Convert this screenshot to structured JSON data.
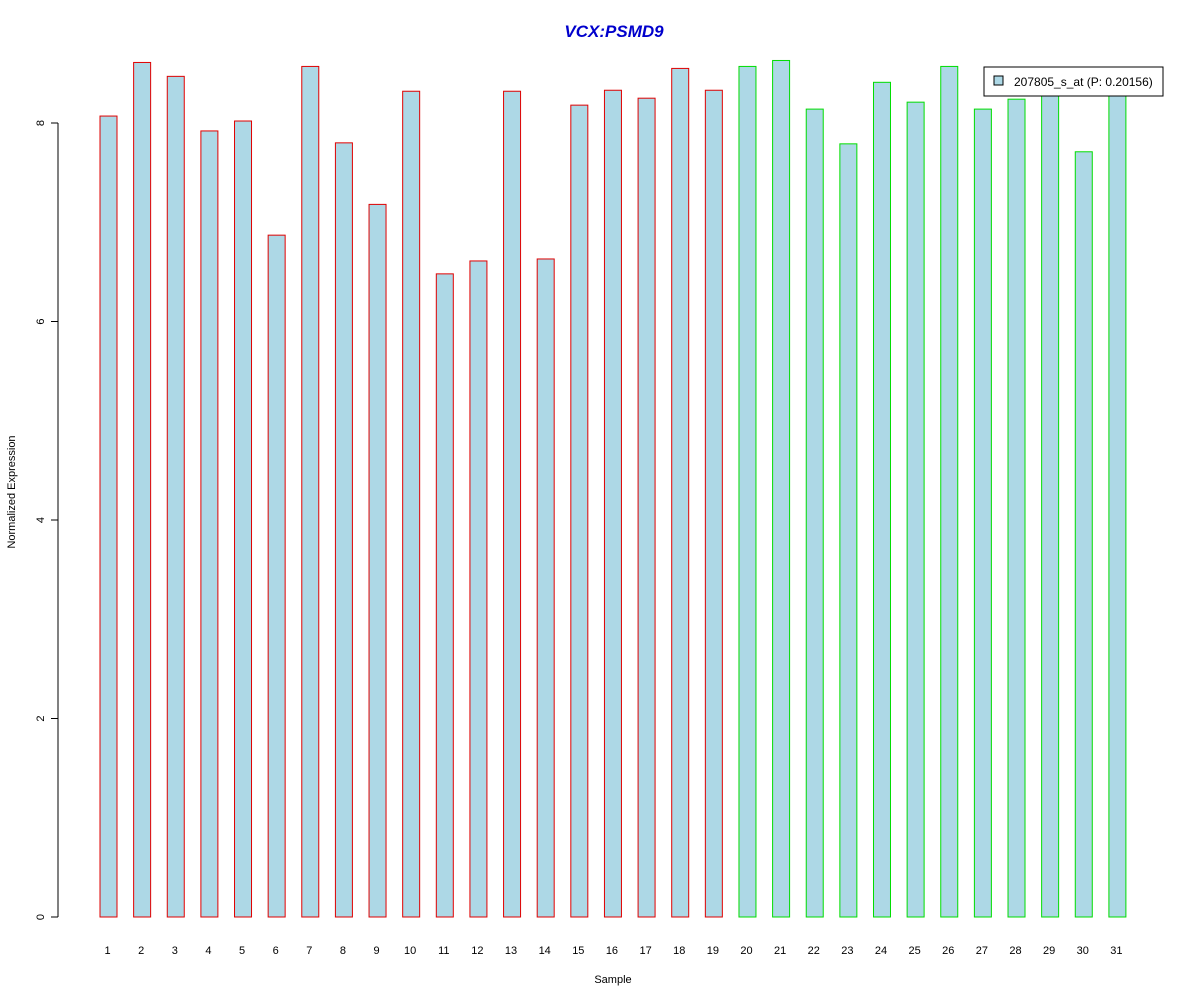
{
  "chart_data": {
    "type": "bar",
    "title": "VCX:PSMD9",
    "xlabel": "Sample",
    "ylabel": "Normalized Expression",
    "categories": [
      "1",
      "2",
      "3",
      "4",
      "5",
      "6",
      "7",
      "8",
      "9",
      "10",
      "11",
      "12",
      "13",
      "14",
      "15",
      "16",
      "17",
      "18",
      "19",
      "20",
      "21",
      "22",
      "23",
      "24",
      "25",
      "26",
      "27",
      "28",
      "29",
      "30",
      "31"
    ],
    "values": [
      8.07,
      8.61,
      8.47,
      7.92,
      8.02,
      6.87,
      8.57,
      7.8,
      7.18,
      8.32,
      6.48,
      6.61,
      8.32,
      6.63,
      8.18,
      8.33,
      8.25,
      8.55,
      8.33,
      8.57,
      8.63,
      8.14,
      7.79,
      8.41,
      8.21,
      8.57,
      8.14,
      8.24,
      8.31,
      7.71,
      8.32
    ],
    "group_edge_colors": {
      "group1": "#e00000",
      "group2": "#00dd00"
    },
    "group_of_bar": [
      1,
      1,
      1,
      1,
      1,
      1,
      1,
      1,
      1,
      1,
      1,
      1,
      1,
      1,
      1,
      1,
      1,
      1,
      1,
      2,
      2,
      2,
      2,
      2,
      2,
      2,
      2,
      2,
      2,
      2,
      2
    ],
    "bar_fill": "#add8e6",
    "title_color": "#0000cc",
    "yticks": [
      "0",
      "2",
      "4",
      "6",
      "8"
    ],
    "ylim": [
      0,
      8.7
    ],
    "grid": false,
    "legend": {
      "placement": "top-right",
      "entries": [
        {
          "label": "207805_s_at (P: 0.20156)",
          "fill": "#add8e6"
        }
      ]
    }
  }
}
